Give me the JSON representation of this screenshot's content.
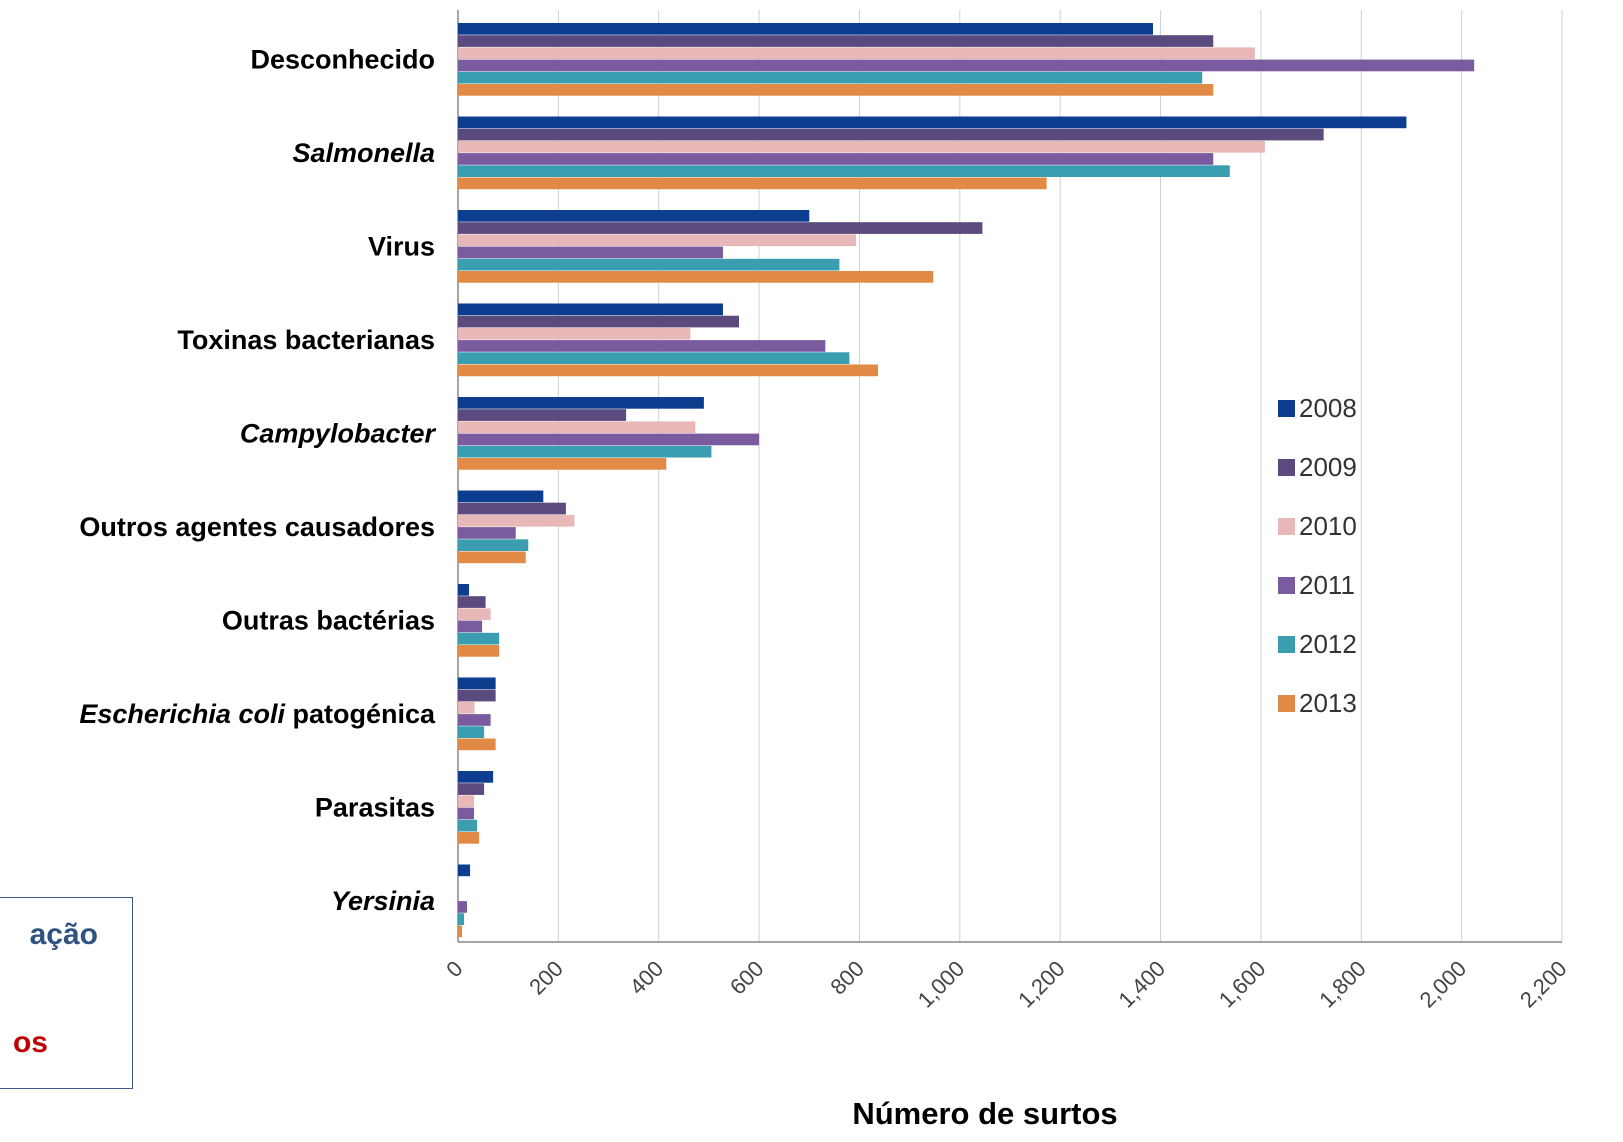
{
  "overlay_box": {
    "line1": "ação",
    "line2": "os"
  },
  "chart_data": {
    "type": "bar",
    "orientation": "horizontal",
    "xlabel": "Número de surtos",
    "xlim": [
      0,
      2200
    ],
    "xticks": [
      "0",
      "200",
      "400",
      "600",
      "800",
      "1,000",
      "1,200",
      "1,400",
      "1,600",
      "1,800",
      "2,000",
      "2,200"
    ],
    "xtick_values": [
      0,
      200,
      400,
      600,
      800,
      1000,
      1200,
      1400,
      1600,
      1800,
      2000,
      2200
    ],
    "grid": "vertical",
    "legend_position": "right",
    "categories": [
      {
        "label": "Desconhecido",
        "italic": false
      },
      {
        "label": "Salmonella",
        "italic": true
      },
      {
        "label": "Virus",
        "italic": false
      },
      {
        "label": "Toxinas bacterianas",
        "italic": false
      },
      {
        "label": "Campylobacter",
        "italic": true
      },
      {
        "label": "Outros agentes causadores",
        "italic": false
      },
      {
        "label": "Outras bactérias",
        "italic": false
      },
      {
        "label": "Escherichia coli",
        "label_suffix": " patogénica",
        "italic": true
      },
      {
        "label": "Parasitas",
        "italic": false
      },
      {
        "label": "Yersinia",
        "italic": true
      }
    ],
    "series": [
      {
        "name": "2008",
        "color": "#0d3d8f",
        "values": [
          1385,
          1890,
          700,
          528,
          490,
          170,
          22,
          75,
          70,
          24
        ]
      },
      {
        "name": "2009",
        "color": "#5b4a7e",
        "values": [
          1505,
          1725,
          1045,
          560,
          335,
          215,
          55,
          75,
          52,
          0
        ]
      },
      {
        "name": "2010",
        "color": "#e8b8b8",
        "values": [
          1588,
          1608,
          793,
          463,
          473,
          232,
          65,
          33,
          32,
          0
        ]
      },
      {
        "name": "2011",
        "color": "#7b5ba0",
        "values": [
          2025,
          1505,
          528,
          732,
          600,
          115,
          48,
          65,
          32,
          18
        ]
      },
      {
        "name": "2012",
        "color": "#3a9db0",
        "values": [
          1483,
          1538,
          760,
          780,
          505,
          140,
          82,
          52,
          38,
          12
        ]
      },
      {
        "name": "2013",
        "color": "#e08a45",
        "values": [
          1505,
          1173,
          947,
          837,
          415,
          135,
          82,
          75,
          42,
          8
        ]
      }
    ]
  }
}
